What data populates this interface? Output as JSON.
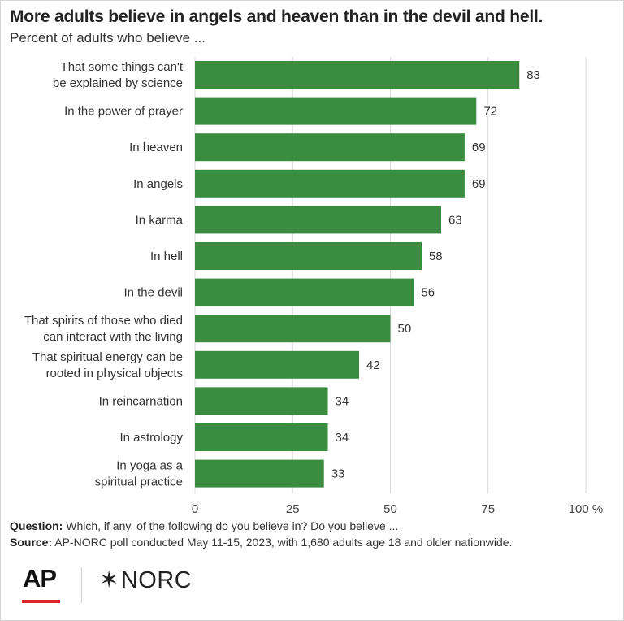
{
  "chart_data": {
    "type": "bar",
    "orientation": "horizontal",
    "title": "More adults believe in angels and heaven than in the devil and hell.",
    "subtitle": "Percent of adults who believe ...",
    "categories": [
      [
        "That some things can't",
        "be explained by science"
      ],
      [
        "In the power of prayer"
      ],
      [
        "In heaven"
      ],
      [
        "In angels"
      ],
      [
        "In karma"
      ],
      [
        "In hell"
      ],
      [
        "In the devil"
      ],
      [
        "That spirits of those who died",
        "can interact with the living"
      ],
      [
        "That spiritual energy can be",
        "rooted in physical objects"
      ],
      [
        "In reincarnation"
      ],
      [
        "In astrology"
      ],
      [
        "In yoga as a",
        "spiritual practice"
      ]
    ],
    "values": [
      83,
      72,
      69,
      69,
      63,
      58,
      56,
      50,
      42,
      34,
      34,
      33
    ],
    "xlim": [
      0,
      100
    ],
    "x_ticks": [
      "0",
      "25",
      "50",
      "75",
      "100 %"
    ],
    "x_tick_values": [
      0,
      25,
      50,
      75,
      100
    ],
    "grid": true,
    "legend": "none",
    "bar_color": "#3a8d3f",
    "grid_color": "#d9d9d9"
  },
  "notes": {
    "question_label": "Question:",
    "question_text": "Which, if any, of the following do you believe in? Do you believe ...",
    "source_label": "Source:",
    "source_text": "AP-NORC poll conducted May 11-15, 2023, with 1,680 adults age 18 and older nationwide."
  },
  "logos": {
    "ap": "AP",
    "norc_star": "✶",
    "norc": "NORC",
    "ap_accent": "#e0242b"
  }
}
